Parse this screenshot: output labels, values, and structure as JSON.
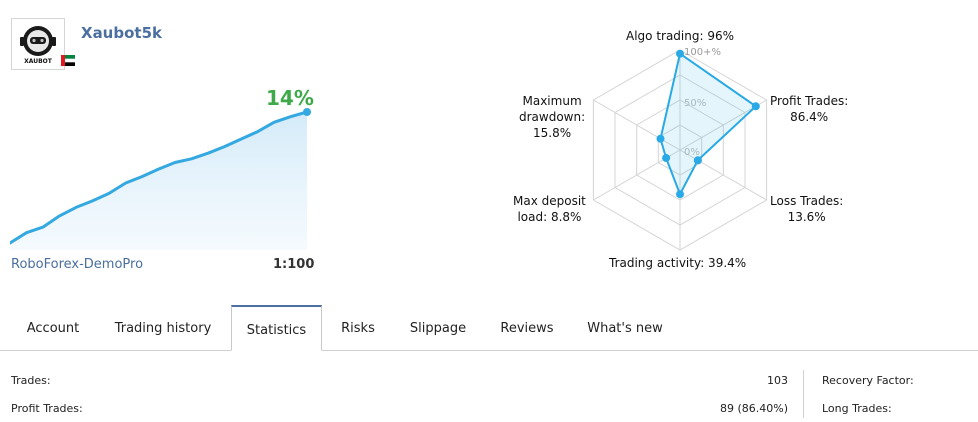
{
  "profile": {
    "name": "Xaubot5k",
    "logo_text": "XAUBOT",
    "flag": "uae-flag-icon"
  },
  "growth": {
    "percent_label": "14%",
    "broker": "RoboForex-DemoPro",
    "leverage": "1:100",
    "line_color": "#34a8e0",
    "curve": [
      0,
      1.1,
      1.7,
      2.9,
      3.8,
      4.5,
      5.3,
      6.4,
      7.1,
      7.9,
      8.6,
      9.0,
      9.6,
      10.3,
      11.1,
      11.9,
      12.9,
      13.5,
      14.0
    ]
  },
  "radar": {
    "scale_labels": [
      "100+%",
      "50%",
      "0%"
    ],
    "accent_color": "#29a9e6",
    "axes": [
      {
        "label": "Algo trading: 96%",
        "value": 96
      },
      {
        "label": "Profit Trades:\n86.4%",
        "value": 86.4
      },
      {
        "label": "Loss Trades:\n13.6%",
        "value": 13.6
      },
      {
        "label": "Trading activity: 39.4%",
        "value": 39.4
      },
      {
        "label": "Max deposit\nload: 8.8%",
        "value": 8.8
      },
      {
        "label": "Maximum\ndrawdown:\n15.8%",
        "value": 15.8
      }
    ]
  },
  "tabs": [
    {
      "label": "Account",
      "active": false
    },
    {
      "label": "Trading history",
      "active": false
    },
    {
      "label": "Statistics",
      "active": true
    },
    {
      "label": "Risks",
      "active": false
    },
    {
      "label": "Slippage",
      "active": false
    },
    {
      "label": "Reviews",
      "active": false
    },
    {
      "label": "What's new",
      "active": false
    }
  ],
  "statistics": {
    "left": [
      {
        "label": "Trades:",
        "value": "103"
      },
      {
        "label": "Profit Trades:",
        "value": "89 (86.40%)"
      }
    ],
    "right": [
      {
        "label": "Recovery Factor:"
      },
      {
        "label": "Long Trades:"
      }
    ]
  }
}
